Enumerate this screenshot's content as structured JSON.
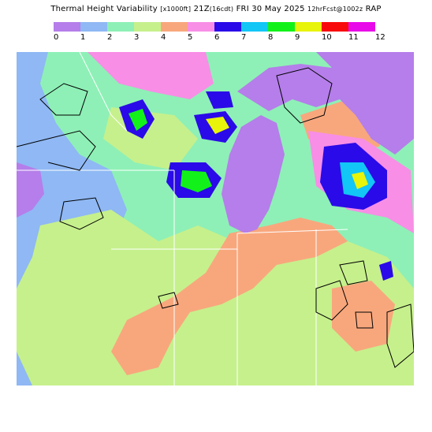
{
  "title": {
    "main": "Thermal Height Variability",
    "unit": "[x1000ft]",
    "time": "21Z",
    "local": "(16cdt)",
    "date": "FRI 30 May 2025",
    "forecast": "12hrFcst@1002z",
    "model": "RAP"
  },
  "legend": {
    "labels": [
      "0",
      "1",
      "2",
      "3",
      "4",
      "5",
      "6",
      "7",
      "8",
      "9",
      "10",
      "11",
      "12"
    ],
    "colors": [
      "#b57eea",
      "#8fb8f4",
      "#8ef0b6",
      "#c6f08c",
      "#f8a77d",
      "#f88ee6",
      "#2a0ae8",
      "#12c6f6",
      "#12f21a",
      "#e8f40a",
      "#f80a0a",
      "#e80ae8"
    ]
  },
  "map": {
    "region": "Great Lakes / Upper Midwest",
    "lake_color": "#b57eea",
    "background_color": "#8fb8f4"
  }
}
